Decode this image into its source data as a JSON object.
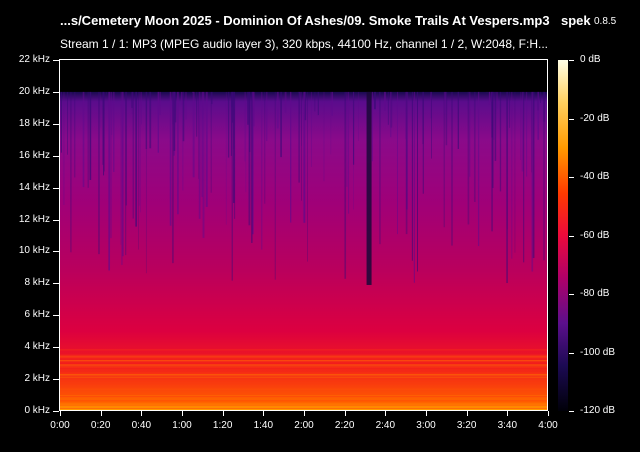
{
  "window": {
    "title": "...s/Cemetery Moon 2025 - Dominion Of Ashes/09. Smoke Trails At Vespers.mp3",
    "app_name": "spek",
    "app_version": "0.8.5",
    "stream_info": "Stream 1 / 1: MP3 (MPEG audio layer 3), 320 kbps, 44100 Hz, channel 1 / 2, W:2048, F:H..."
  },
  "axes": {
    "y_ticks": [
      "22 kHz",
      "20 kHz",
      "18 kHz",
      "16 kHz",
      "14 kHz",
      "12 kHz",
      "10 kHz",
      "8 kHz",
      "6 kHz",
      "4 kHz",
      "2 kHz",
      "0 kHz"
    ],
    "x_ticks": [
      "0:00",
      "0:20",
      "0:40",
      "1:00",
      "1:20",
      "1:40",
      "2:00",
      "2:20",
      "2:40",
      "3:00",
      "3:20",
      "3:40",
      "4:00"
    ]
  },
  "colorbar": {
    "labels": [
      "0 dB",
      "-20 dB",
      "-40 dB",
      "-60 dB",
      "-80 dB",
      "-100 dB",
      "-120 dB"
    ]
  },
  "spectrogram": {
    "cutoff_khz": 20,
    "max_khz": 22,
    "duration_s": 240,
    "gap_at_s": 152,
    "colors": {
      "high": "#ff3a00",
      "mid": "#d6004e",
      "low": "#7a0b8a",
      "top": "#1a0a50",
      "background": "#000000"
    }
  }
}
